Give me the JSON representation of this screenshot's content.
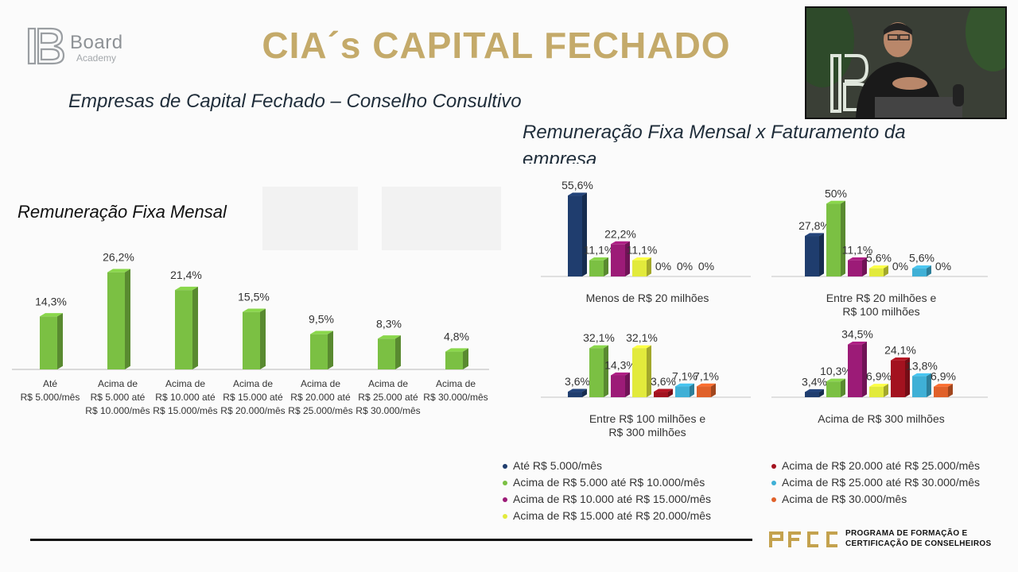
{
  "header": {
    "brand_name": "Board",
    "brand_sub": "Academy",
    "title": "CIA´s CAPITAL FECHADO",
    "title_color": "#c4aa6a"
  },
  "subtitle": "Empresas de Capital Fechado – Conselho Consultivo",
  "right_title": "Remuneração Fixa Mensal x Faturamento da empresa",
  "left_title": "Remuneração Fixa Mensal",
  "footer": {
    "pfcc_line1": "PROGRAMA DE FORMAÇÃO E",
    "pfcc_line2": "CERTIFICAÇÃO DE CONSELHEIROS"
  },
  "webcam": {
    "description_icon": "presenter-video-icon"
  },
  "legend": [
    {
      "label": "Até R$ 5.000/mês",
      "color": "#1f3d6e"
    },
    {
      "label": "Acima de R$ 5.000 até R$ 10.000/mês",
      "color": "#7bc043"
    },
    {
      "label": "Acima de R$ 10.000 até R$ 15.000/mês",
      "color": "#9c1b77"
    },
    {
      "label": "Acima de R$ 15.000 até R$ 20.000/mês",
      "color": "#e2ea3c"
    },
    {
      "label": "Acima de R$ 20.000 até R$ 25.000/mês",
      "color": "#a3121f"
    },
    {
      "label": "Acima de R$ 25.000 até R$ 30.000/mês",
      "color": "#3fb0d6"
    },
    {
      "label": "Acima de R$ 30.000/mês",
      "color": "#e0612a"
    }
  ],
  "chart_data": [
    {
      "type": "bar",
      "title": "Remuneração Fixa Mensal",
      "categories": [
        [
          "Até",
          "R$ 5.000/mês"
        ],
        [
          "Acima de",
          "R$ 5.000 até",
          "R$ 10.000/mês"
        ],
        [
          "Acima de",
          "R$ 10.000 até",
          "R$ 15.000/mês"
        ],
        [
          "Acima de",
          "R$ 15.000 até",
          "R$ 20.000/mês"
        ],
        [
          "Acima de",
          "R$ 20.000 até",
          "R$ 25.000/mês"
        ],
        [
          "Acima de",
          "R$ 25.000 até",
          "R$ 30.000/mês"
        ],
        [
          "Acima de",
          "R$ 30.000/mês"
        ]
      ],
      "values": [
        14.3,
        26.2,
        21.4,
        15.5,
        9.5,
        8.3,
        4.8
      ],
      "labels": [
        "14,3%",
        "26,2%",
        "21,4%",
        "15,5%",
        "9,5%",
        "8,3%",
        "4,8%"
      ],
      "color": "#7bc043",
      "ylim": [
        0,
        30
      ]
    },
    {
      "type": "bar",
      "title": "Menos de R$ 20 milhões",
      "values": [
        55.6,
        11.1,
        22.2,
        11.1,
        0,
        0,
        0
      ],
      "labels": [
        "55,6%",
        "11,1%",
        "22,2%",
        "11,1%",
        "0%",
        "0%",
        "0%"
      ],
      "ylim": [
        0,
        60
      ]
    },
    {
      "type": "bar",
      "title": "Entre R$ 20 milhões e R$ 100 milhões",
      "title_lines": [
        "Entre R$ 20 milhões e",
        "R$ 100 milhões"
      ],
      "values": [
        27.8,
        50,
        11.1,
        5.6,
        0,
        5.6,
        0
      ],
      "labels": [
        "27,8%",
        "50%",
        "11,1%",
        "5,6%",
        "0%",
        "5,6%",
        "0%"
      ],
      "ylim": [
        0,
        60
      ]
    },
    {
      "type": "bar",
      "title": "Entre R$ 100 milhões e R$ 300 milhões",
      "title_lines": [
        "Entre R$ 100 milhões e",
        "R$ 300 milhões"
      ],
      "values": [
        3.6,
        32.1,
        14.3,
        32.1,
        3.6,
        7.1,
        7.1
      ],
      "labels": [
        "3,6%",
        "32,1%",
        "14,3%",
        "32,1%",
        "3,6%",
        "7,1%",
        "7,1%"
      ],
      "ylim": [
        0,
        40
      ]
    },
    {
      "type": "bar",
      "title": "Acima de R$ 300 milhões",
      "values": [
        3.4,
        10.3,
        34.5,
        6.9,
        24.1,
        13.8,
        6.9
      ],
      "labels": [
        "3,4%",
        "10,3%",
        "34,5%",
        "6,9%",
        "24,1%",
        "13,8%",
        "6,9%"
      ],
      "ylim": [
        0,
        40
      ]
    }
  ]
}
